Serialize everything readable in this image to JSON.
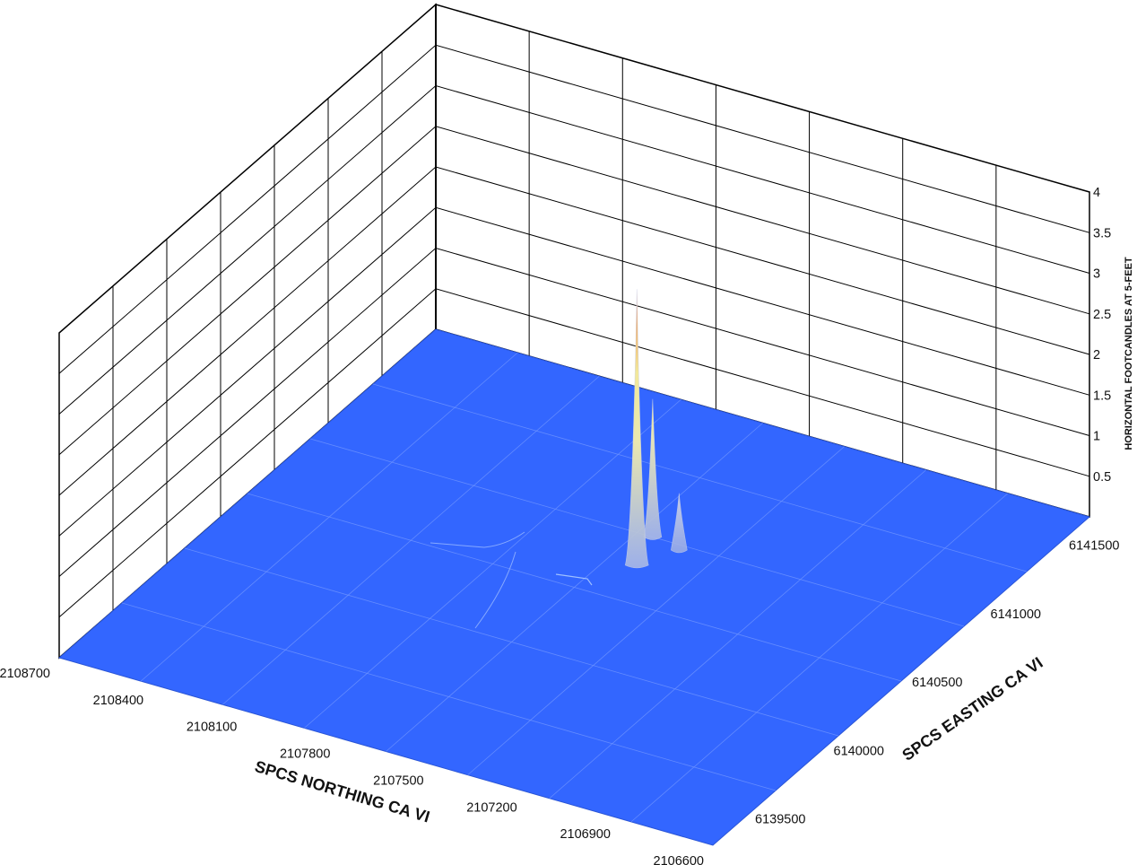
{
  "chart_data": {
    "type": "surface",
    "title": "",
    "xlabel": "SPCS NORTHING CA VI",
    "ylabel": "SPCS EASTING CA VI",
    "zlabel": "HORIZONTAL FOOTCANDLES AT 5-FEET",
    "x_ticks": [
      "2108700",
      "2108400",
      "2108100",
      "2107800",
      "2107500",
      "2107200",
      "2106900",
      "2106600"
    ],
    "x_range": [
      2108700,
      2106600
    ],
    "y_ticks": [
      "6139500",
      "6140000",
      "6140500",
      "6141000",
      "6141500"
    ],
    "y_range": [
      6139300,
      6141700
    ],
    "z_ticks": [
      "0.5",
      "1",
      "1.5",
      "2",
      "2.5",
      "3",
      "3.5",
      "4"
    ],
    "z_range": [
      0,
      4
    ],
    "grid": true,
    "surface_color": "#3366ff",
    "peak_colors": {
      "low": "#a9b8e6",
      "mid": "#f2e89a",
      "high": "#f08040"
    },
    "peaks": [
      {
        "northing": 2107560,
        "easting": 6140720,
        "value": 3.4
      },
      {
        "northing": 2107600,
        "easting": 6140900,
        "value": 1.7
      },
      {
        "northing": 2107500,
        "easting": 6140870,
        "value": 0.7
      }
    ]
  }
}
